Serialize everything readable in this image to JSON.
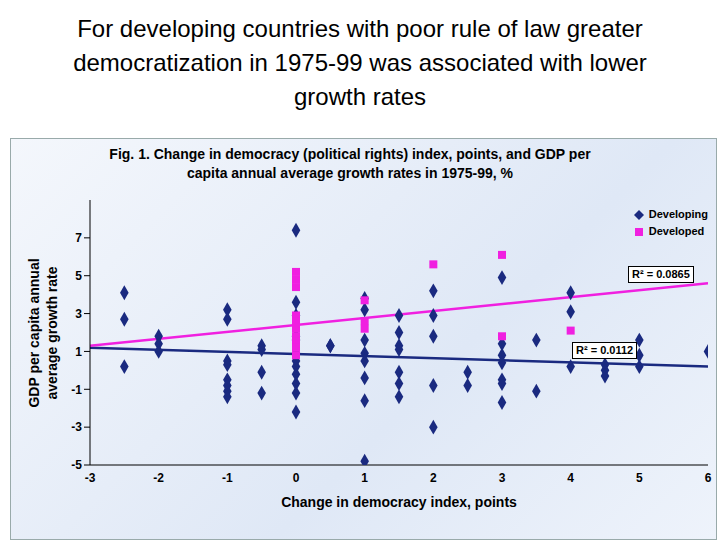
{
  "title": "For developing countries with poor rule of law greater democratization in 1975-99 was associated with lower growth rates",
  "chart_data": {
    "type": "scatter",
    "title": "Fig. 1. Change in democracy (political rights) index, points, and GDP per capita annual average growth rates in 1975-99, %",
    "x_label": "Change in democracy index, points",
    "y_label": "GDP per capita annual average growth rate",
    "xlim": [
      -3,
      6
    ],
    "xticks": [
      -3,
      -2,
      -1,
      0,
      1,
      2,
      3,
      4,
      5,
      6
    ],
    "ylim": [
      -5,
      9
    ],
    "yticks": [
      -5,
      -3,
      -1,
      1,
      3,
      5,
      7
    ],
    "grid": false,
    "legend": "upper right",
    "series": [
      {
        "name": "Developing",
        "color": "#1a2a80",
        "marker": "diamond",
        "x": [
          -2.5,
          -2.5,
          -2.5,
          -2,
          -2,
          -2,
          -1,
          -1,
          -1,
          -1,
          -1,
          -1,
          -1,
          -1,
          -0.5,
          -0.5,
          -0.5,
          -0.5,
          0,
          0,
          0,
          0,
          0,
          0.5,
          0,
          0,
          0,
          0,
          0,
          0,
          0,
          0.5,
          1,
          1,
          1,
          1,
          1,
          1,
          1,
          1,
          1.5,
          1.5,
          1.5,
          1.5,
          1.5,
          1.5,
          1.5,
          2,
          2,
          2,
          2,
          2,
          2.5,
          2.5,
          3,
          3,
          3,
          3,
          3,
          3,
          3,
          3.5,
          3.5,
          4,
          4,
          4,
          4.5,
          4.5,
          4.5,
          5,
          5,
          5,
          6
        ],
        "values": [
          4.1,
          2.7,
          0.2,
          1.8,
          1.4,
          1.0,
          3.2,
          2.7,
          0.5,
          0.3,
          -0.5,
          -0.8,
          -1.1,
          -1.4,
          1.3,
          1.1,
          -0.1,
          -1.2,
          7.4,
          3.6,
          2.9,
          1.8,
          1.6,
          1.3,
          0.9,
          0.5,
          0.2,
          -0.2,
          -0.7,
          -1.2,
          -2.2,
          1.3,
          3.8,
          3.2,
          1.6,
          0.9,
          0.5,
          -0.4,
          -1.6,
          -4.8,
          2.9,
          2.0,
          1.3,
          1.1,
          -0.1,
          -0.7,
          -1.4,
          4.2,
          2.9,
          1.8,
          -0.8,
          -3.0,
          -0.1,
          -0.8,
          4.9,
          1.4,
          0.8,
          0.4,
          -0.5,
          -0.7,
          -1.7,
          1.6,
          -1.1,
          4.1,
          3.1,
          0.2,
          0.3,
          0.0,
          -0.3,
          1.6,
          0.8,
          0.2,
          1.0
        ],
        "trend": {
          "x": [
            -3,
            6
          ],
          "values": [
            1.2,
            0.2
          ],
          "label": "R² = 0.0112"
        }
      },
      {
        "name": "Developed",
        "color": "#f020e0",
        "marker": "square",
        "x": [
          0,
          0,
          0,
          0,
          0,
          0,
          0,
          0,
          0,
          0,
          1,
          1,
          1,
          2,
          3,
          3,
          4
        ],
        "values": [
          5.2,
          4.8,
          4.4,
          2.9,
          2.6,
          2.2,
          1.8,
          1.5,
          1.2,
          0.8,
          3.7,
          2.6,
          2.2,
          5.6,
          6.1,
          1.8,
          2.1
        ],
        "trend": {
          "x": [
            -3,
            6
          ],
          "values": [
            1.3,
            4.6
          ],
          "label": "R² = 0.0865"
        }
      }
    ]
  }
}
